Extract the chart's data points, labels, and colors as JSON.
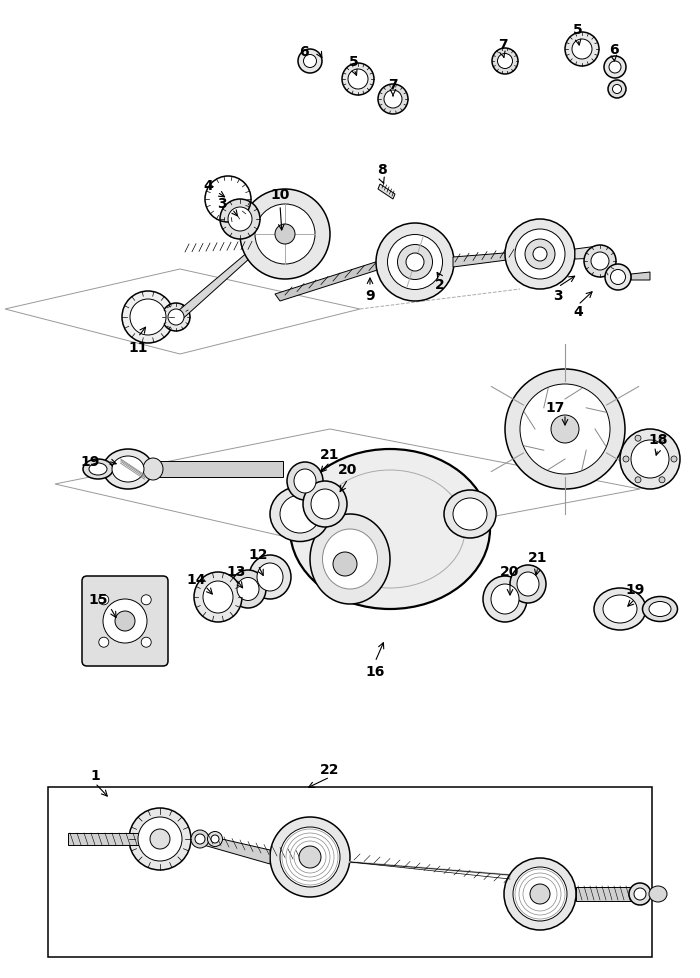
{
  "bg_color": "#ffffff",
  "line_color": "#000000",
  "fig_width": 7.0,
  "fig_height": 9.79,
  "lw_thin": 0.7,
  "lw_med": 1.1,
  "lw_thick": 1.6
}
